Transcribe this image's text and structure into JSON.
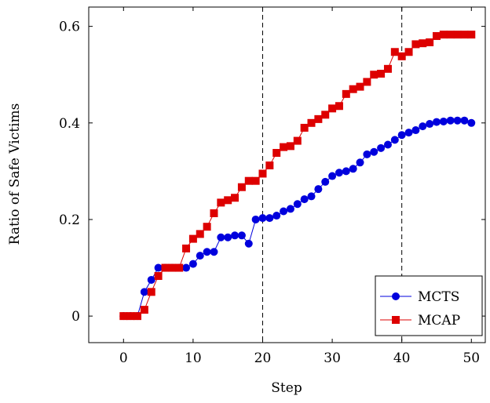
{
  "chart_data": {
    "type": "line",
    "title": "",
    "xlabel": "Step",
    "ylabel": "Ratio of Safe Victims",
    "xlim": [
      -5,
      52
    ],
    "ylim": [
      -0.055,
      0.64
    ],
    "xticks": [
      0,
      10,
      20,
      30,
      40,
      50
    ],
    "xtick_labels": [
      "0",
      "10",
      "20",
      "30",
      "40",
      "50"
    ],
    "yticks": [
      0,
      0.2,
      0.4,
      0.6
    ],
    "ytick_labels": [
      "0",
      "0.2",
      "0.4",
      "0.6"
    ],
    "vertical_lines": [
      20,
      40
    ],
    "grid": false,
    "legend_position": "bottom-right",
    "x": [
      0,
      1,
      2,
      3,
      4,
      5,
      6,
      7,
      8,
      9,
      10,
      11,
      12,
      13,
      14,
      15,
      16,
      17,
      18,
      19,
      20,
      21,
      22,
      23,
      24,
      25,
      26,
      27,
      28,
      29,
      30,
      31,
      32,
      33,
      34,
      35,
      36,
      37,
      38,
      39,
      40,
      41,
      42,
      43,
      44,
      45,
      46,
      47,
      48,
      49,
      50
    ],
    "series": [
      {
        "name": "MCTS",
        "color": "#0000dd",
        "marker": "circle",
        "values": [
          0,
          0,
          0,
          0.05,
          0.075,
          0.1,
          0.1,
          0.1,
          0.1,
          0.1,
          0.108,
          0.125,
          0.133,
          0.133,
          0.163,
          0.163,
          0.167,
          0.167,
          0.15,
          0.2,
          0.203,
          0.203,
          0.208,
          0.217,
          0.222,
          0.232,
          0.242,
          0.248,
          0.263,
          0.278,
          0.29,
          0.297,
          0.3,
          0.305,
          0.318,
          0.335,
          0.34,
          0.348,
          0.355,
          0.365,
          0.375,
          0.38,
          0.385,
          0.393,
          0.398,
          0.402,
          0.403,
          0.405,
          0.405,
          0.405,
          0.4
        ]
      },
      {
        "name": "MCAP",
        "color": "#dd0000",
        "marker": "square",
        "values": [
          0,
          0,
          0,
          0.013,
          0.05,
          0.083,
          0.1,
          0.1,
          0.1,
          0.14,
          0.16,
          0.17,
          0.185,
          0.213,
          0.235,
          0.24,
          0.245,
          0.267,
          0.28,
          0.28,
          0.295,
          0.312,
          0.338,
          0.35,
          0.352,
          0.363,
          0.39,
          0.4,
          0.408,
          0.417,
          0.43,
          0.435,
          0.46,
          0.47,
          0.475,
          0.485,
          0.5,
          0.502,
          0.512,
          0.547,
          0.538,
          0.547,
          0.563,
          0.565,
          0.567,
          0.58,
          0.583,
          0.583,
          0.583,
          0.583,
          0.583
        ]
      }
    ]
  }
}
